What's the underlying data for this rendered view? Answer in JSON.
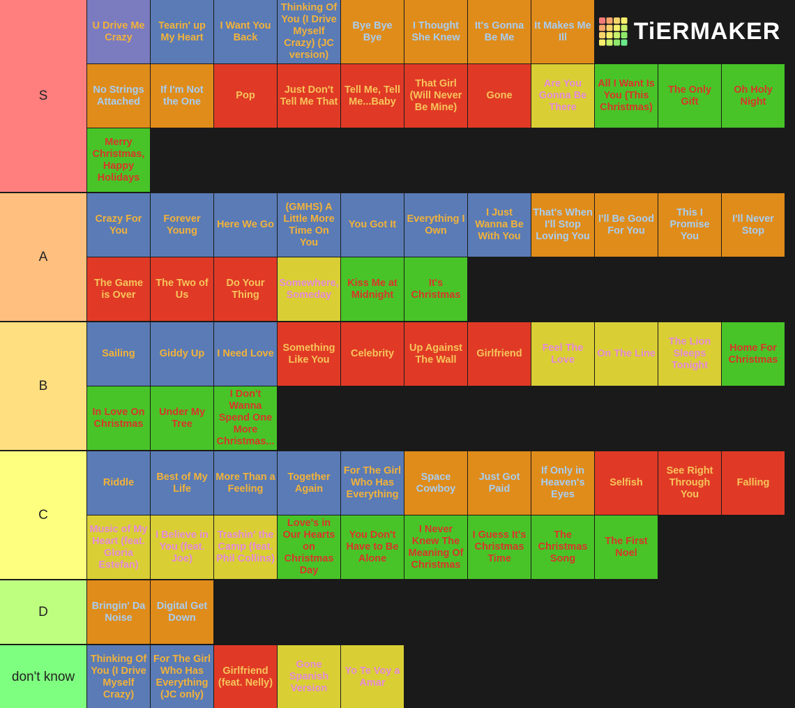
{
  "logo": "TiERMAKER",
  "tiers": [
    {
      "label": "S",
      "color": "#ff7f7f",
      "items": [
        {
          "text": "U Drive Me Crazy",
          "color": "#7b7bbf"
        },
        {
          "text": "Tearin' up My Heart",
          "color": "#5a7bb5"
        },
        {
          "text": "I Want You Back",
          "color": "#5a7bb5"
        },
        {
          "text": "Thinking Of You (I Drive Myself Crazy) (JC version)",
          "color": "#5a7bb5"
        },
        {
          "text": "Bye Bye Bye",
          "color": "#e08c1a"
        },
        {
          "text": "I Thought She Knew",
          "color": "#e08c1a"
        },
        {
          "text": "It's Gonna Be Me",
          "color": "#e08c1a"
        },
        {
          "text": "It Makes Me Ill",
          "color": "#e08c1a"
        },
        {
          "text": "No Strings Attached",
          "color": "#e08c1a"
        },
        {
          "text": "If I'm Not the One",
          "color": "#e08c1a"
        },
        {
          "text": "Pop",
          "color": "#e03a26"
        },
        {
          "text": "Just Don't Tell Me That",
          "color": "#e03a26"
        },
        {
          "text": "Tell Me, Tell Me...Baby",
          "color": "#e03a26"
        },
        {
          "text": "That Girl (Will Never Be Mine)",
          "color": "#e03a26"
        },
        {
          "text": "Gone",
          "color": "#e03a26"
        },
        {
          "text": "Are You Gonna Be There",
          "color": "#d9cf35"
        },
        {
          "text": "All I Want Is You (This Christmas)",
          "color": "#48c428"
        },
        {
          "text": "The Only Gift",
          "color": "#48c428"
        },
        {
          "text": "Oh Holy Night",
          "color": "#48c428"
        },
        {
          "text": "Merry Christmas, Happy Holidays",
          "color": "#48c428"
        }
      ]
    },
    {
      "label": "A",
      "color": "#ffbf7f",
      "items": [
        {
          "text": "Crazy For You",
          "color": "#5a7bb5"
        },
        {
          "text": "Forever Young",
          "color": "#5a7bb5"
        },
        {
          "text": "Here We Go",
          "color": "#5a7bb5"
        },
        {
          "text": "(GMHS) A Little More Time On You",
          "color": "#5a7bb5"
        },
        {
          "text": "You Got It",
          "color": "#5a7bb5"
        },
        {
          "text": "Everything I Own",
          "color": "#5a7bb5"
        },
        {
          "text": "I Just Wanna Be With You",
          "color": "#5a7bb5"
        },
        {
          "text": "That's When I'll Stop Loving You",
          "color": "#e08c1a"
        },
        {
          "text": "I'll Be Good For You",
          "color": "#e08c1a"
        },
        {
          "text": "This I Promise You",
          "color": "#e08c1a"
        },
        {
          "text": "I'll Never Stop",
          "color": "#e08c1a"
        },
        {
          "text": "The Game is Over",
          "color": "#e03a26"
        },
        {
          "text": "The Two of Us",
          "color": "#e03a26"
        },
        {
          "text": "Do Your Thing",
          "color": "#e03a26"
        },
        {
          "text": "Somewhere, Someday",
          "color": "#d9cf35"
        },
        {
          "text": "Kiss Me at Midnight",
          "color": "#48c428"
        },
        {
          "text": "It's Christmas",
          "color": "#48c428"
        }
      ]
    },
    {
      "label": "B",
      "color": "#ffdf7f",
      "items": [
        {
          "text": "Sailing",
          "color": "#5a7bb5"
        },
        {
          "text": "Giddy Up",
          "color": "#5a7bb5"
        },
        {
          "text": "I Need Love",
          "color": "#5a7bb5"
        },
        {
          "text": "Something Like You",
          "color": "#e03a26"
        },
        {
          "text": "Celebrity",
          "color": "#e03a26"
        },
        {
          "text": "Up Against The Wall",
          "color": "#e03a26"
        },
        {
          "text": "Girlfriend",
          "color": "#e03a26"
        },
        {
          "text": "Feel The Love",
          "color": "#d9cf35"
        },
        {
          "text": "On The Line",
          "color": "#d9cf35"
        },
        {
          "text": "The Lion Sleeps Tonight",
          "color": "#d9cf35"
        },
        {
          "text": "Home For Christmas",
          "color": "#48c428"
        },
        {
          "text": "In Love On Christmas",
          "color": "#48c428"
        },
        {
          "text": "Under My Tree",
          "color": "#48c428"
        },
        {
          "text": "I Don't Wanna Spend One More Christmas...",
          "color": "#48c428"
        }
      ]
    },
    {
      "label": "C",
      "color": "#ffff7f",
      "items": [
        {
          "text": "Riddle",
          "color": "#5a7bb5"
        },
        {
          "text": "Best of My Life",
          "color": "#5a7bb5"
        },
        {
          "text": "More Than a Feeling",
          "color": "#5a7bb5"
        },
        {
          "text": "Together Again",
          "color": "#5a7bb5"
        },
        {
          "text": "For The Girl Who Has Everything",
          "color": "#5a7bb5"
        },
        {
          "text": "Space Cowboy",
          "color": "#e08c1a"
        },
        {
          "text": "Just Got Paid",
          "color": "#e08c1a"
        },
        {
          "text": "If Only in Heaven's Eyes",
          "color": "#e08c1a"
        },
        {
          "text": "Selfish",
          "color": "#e03a26"
        },
        {
          "text": "See Right Through You",
          "color": "#e03a26"
        },
        {
          "text": "Falling",
          "color": "#e03a26"
        },
        {
          "text": "Music of My Heart (feat. Gloria Estefan)",
          "color": "#d9cf35"
        },
        {
          "text": "I Believe in You (feat. Joe)",
          "color": "#d9cf35"
        },
        {
          "text": "Trashin' the Camp (feat. Phil Collins)",
          "color": "#d9cf35"
        },
        {
          "text": "Love's in Our Hearts on Christmas Day",
          "color": "#48c428"
        },
        {
          "text": "You Don't Have to Be Alone",
          "color": "#48c428"
        },
        {
          "text": "I Never Knew The Meaning Of Christmas",
          "color": "#48c428"
        },
        {
          "text": "I Guess It's Christmas Time",
          "color": "#48c428"
        },
        {
          "text": "The Christmas Song",
          "color": "#48c428"
        },
        {
          "text": "The First Noel",
          "color": "#48c428"
        }
      ]
    },
    {
      "label": "D",
      "color": "#bfff7f",
      "items": [
        {
          "text": "Bringin' Da Noise",
          "color": "#e08c1a"
        },
        {
          "text": "Digital Get Down",
          "color": "#e08c1a"
        }
      ]
    },
    {
      "label": "don't know",
      "color": "#7fff7f",
      "items": [
        {
          "text": "Thinking Of You (I Drive Myself Crazy)",
          "color": "#5a7bb5"
        },
        {
          "text": "For The Girl Who Has Everything (JC only)",
          "color": "#5a7bb5"
        },
        {
          "text": "Girlfriend (feat. Nelly)",
          "color": "#e03a26"
        },
        {
          "text": "Gone Spanish Version",
          "color": "#d9cf35"
        },
        {
          "text": "Yo Te Voy a Amar",
          "color": "#d9cf35"
        }
      ]
    }
  ]
}
